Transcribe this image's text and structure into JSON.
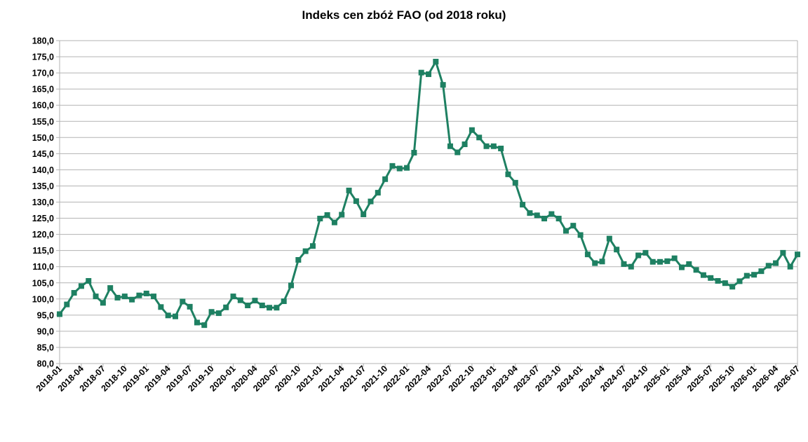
{
  "chart_data": {
    "type": "line",
    "title": "Indeks cen zbóż FAO  (od 2018 roku)",
    "xlabel": "",
    "ylabel": "",
    "ylim": [
      80,
      180
    ],
    "yticks": [
      "80,0",
      "85,0",
      "90,0",
      "95,0",
      "100,0",
      "105,0",
      "110,0",
      "115,0",
      "120,0",
      "125,0",
      "130,0",
      "135,0",
      "140,0",
      "145,0",
      "150,0",
      "155,0",
      "160,0",
      "165,0",
      "170,0",
      "175,0",
      "180,0"
    ],
    "xtick_labels": [
      "2018-01",
      "2018-04",
      "2018-07",
      "2018-10",
      "2019-01",
      "2019-04",
      "2019-07",
      "2019-10",
      "2020-01",
      "2020-04",
      "2020-07",
      "2020-10",
      "2021-01",
      "2021-04",
      "2021-07",
      "2021-10",
      "2022-01",
      "2022-04",
      "2022-07",
      "2022-10",
      "2023-01",
      "2023-04",
      "2023-07",
      "2023-10",
      "2024-01",
      "2024-04",
      "2024-07",
      "2024-10",
      "2025-01",
      "2025-04",
      "2025-07",
      "2025-10",
      "2026-01",
      "2026-04",
      "2026-07"
    ],
    "grid": true,
    "line_color": "#1e8062",
    "marker_color": "#1e8062",
    "series": [
      {
        "name": "",
        "x": [
          "2018-01",
          "2018-02",
          "2018-03",
          "2018-04",
          "2018-05",
          "2018-06",
          "2018-07",
          "2018-08",
          "2018-09",
          "2018-10",
          "2018-11",
          "2018-12",
          "2019-01",
          "2019-02",
          "2019-03",
          "2019-04",
          "2019-05",
          "2019-06",
          "2019-07",
          "2019-08",
          "2019-09",
          "2019-10",
          "2019-11",
          "2019-12",
          "2020-01",
          "2020-02",
          "2020-03",
          "2020-04",
          "2020-05",
          "2020-06",
          "2020-07",
          "2020-08",
          "2020-09",
          "2020-10",
          "2020-11",
          "2020-12",
          "2021-01",
          "2021-02",
          "2021-03",
          "2021-04",
          "2021-05",
          "2021-06",
          "2021-07",
          "2021-08",
          "2021-09",
          "2021-10",
          "2021-11",
          "2021-12",
          "2022-01",
          "2022-02",
          "2022-03",
          "2022-04",
          "2022-05",
          "2022-06",
          "2022-07",
          "2022-08",
          "2022-09",
          "2022-10",
          "2022-11",
          "2022-12",
          "2023-01",
          "2023-02",
          "2023-03",
          "2023-04",
          "2023-05",
          "2023-06",
          "2023-07",
          "2023-08",
          "2023-09",
          "2023-10",
          "2023-11",
          "2023-12",
          "2024-01",
          "2024-02",
          "2024-03",
          "2024-04",
          "2024-05",
          "2024-06",
          "2024-07",
          "2024-08",
          "2024-09",
          "2024-10",
          "2024-11",
          "2024-12",
          "2025-01",
          "2025-02",
          "2025-03",
          "2025-04",
          "2025-05",
          "2025-06",
          "2025-07",
          "2025-08",
          "2025-09",
          "2025-10",
          "2025-11",
          "2025-12",
          "2026-01",
          "2026-02",
          "2026-03",
          "2026-04",
          "2026-05",
          "2026-06",
          "2026-07"
        ],
        "values": [
          95.3,
          98.3,
          101.9,
          104.0,
          105.6,
          100.8,
          98.8,
          103.4,
          100.4,
          100.8,
          99.8,
          101.1,
          101.7,
          100.8,
          97.5,
          94.9,
          94.6,
          99.2,
          97.6,
          92.7,
          91.9,
          96.0,
          95.6,
          97.4,
          100.8,
          99.6,
          98.0,
          99.5,
          98.0,
          97.3,
          97.3,
          99.3,
          104.2,
          112.1,
          114.8,
          116.4,
          124.9,
          126.0,
          123.7,
          126.1,
          133.6,
          130.3,
          126.2,
          130.2,
          132.9,
          137.1,
          141.2,
          140.4,
          140.6,
          145.3,
          170.1,
          169.6,
          173.5,
          166.3,
          147.3,
          145.4,
          147.9,
          152.3,
          150.0,
          147.3,
          147.3,
          146.6,
          138.6,
          136.0,
          129.2,
          126.6,
          125.9,
          124.9,
          126.3,
          124.9,
          121.1,
          122.7,
          119.8,
          113.8,
          111.1,
          111.6,
          118.7,
          115.3,
          110.8,
          110.0,
          113.5,
          114.3,
          111.5,
          111.5,
          111.7,
          112.6,
          109.8,
          110.8,
          109.0,
          107.4,
          106.5,
          105.6,
          104.9,
          103.8,
          105.5,
          107.2,
          107.5,
          108.6,
          110.3,
          111.1,
          114.3,
          110.0,
          113.8
        ]
      }
    ]
  }
}
